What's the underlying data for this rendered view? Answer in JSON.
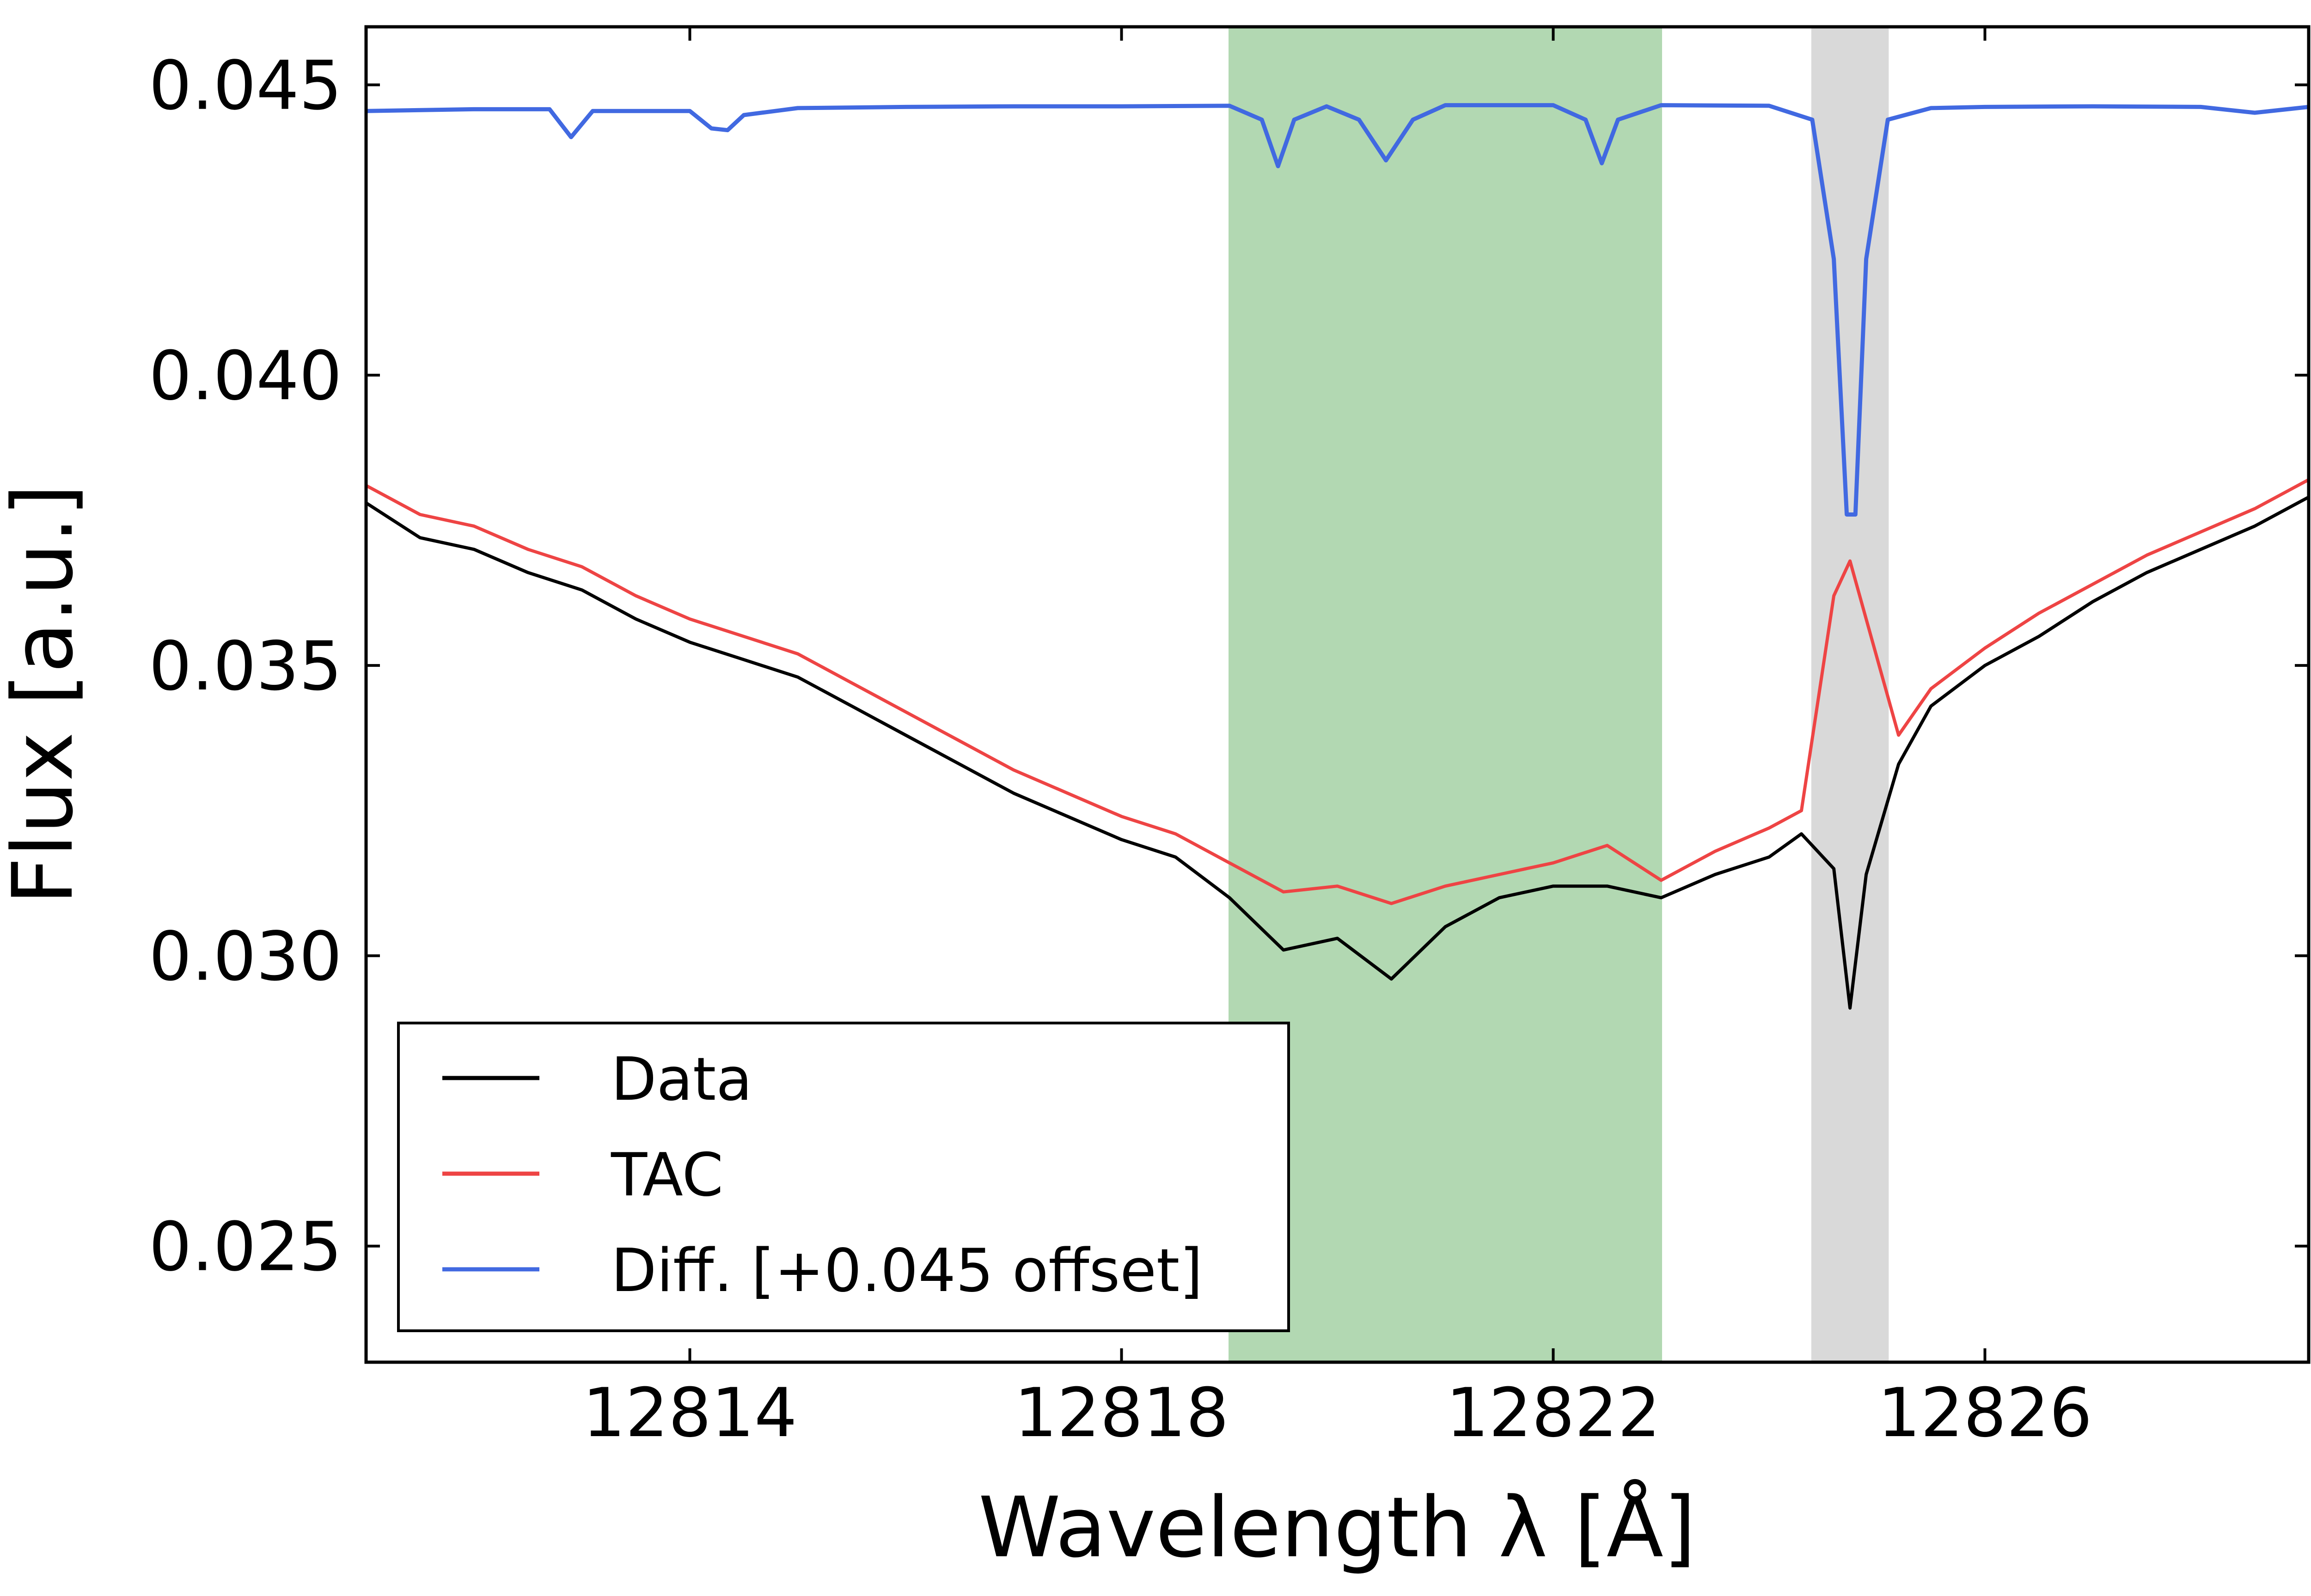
{
  "chart_data": {
    "type": "line",
    "title": "",
    "xlabel": "Wavelength λ [Å]",
    "ylabel": "Flux [a.u.]",
    "xlim": [
      12811,
      12829
    ],
    "ylim": [
      0.023,
      0.046
    ],
    "grid": false,
    "legend_position": "lower-left",
    "x_ticks": [
      12814,
      12818,
      12822,
      12826
    ],
    "x_tick_labels": [
      "12814",
      "12818",
      "12822",
      "12826"
    ],
    "y_ticks": [
      0.025,
      0.03,
      0.035,
      0.04,
      0.045
    ],
    "y_tick_labels": [
      "0.025",
      "0.030",
      "0.035",
      "0.040",
      "0.045"
    ],
    "shaded_regions": [
      {
        "name": "green-band",
        "x_start": 12819.0,
        "x_end": 12823.0,
        "color": "#b2d8b2"
      },
      {
        "name": "gray-band",
        "x_start": 12824.4,
        "x_end": 12825.1,
        "color": "#d9d9d9"
      }
    ],
    "series": [
      {
        "name": "Data",
        "color": "#000000",
        "x": [
          12811.0,
          12811.5,
          12812.0,
          12812.5,
          12813.0,
          12813.5,
          12814.0,
          12814.5,
          12815.0,
          12815.5,
          12816.0,
          12816.5,
          12817.0,
          12817.5,
          12818.0,
          12818.5,
          12819.0,
          12819.5,
          12820.0,
          12820.5,
          12821.0,
          12821.5,
          12822.0,
          12822.5,
          12823.0,
          12823.5,
          12824.0,
          12824.3,
          12824.6,
          12824.75,
          12824.9,
          12825.2,
          12825.5,
          12826.0,
          12826.5,
          12827.0,
          12827.5,
          12828.0,
          12828.5,
          12829.0
        ],
        "y": [
          0.0378,
          0.0372,
          0.037,
          0.0366,
          0.0363,
          0.0358,
          0.0354,
          0.0351,
          0.0348,
          0.0343,
          0.0338,
          0.0333,
          0.0328,
          0.0324,
          0.032,
          0.0317,
          0.031,
          0.0301,
          0.0303,
          0.0296,
          0.0305,
          0.031,
          0.0312,
          0.0312,
          0.031,
          0.0314,
          0.0317,
          0.0321,
          0.0315,
          0.0291,
          0.0314,
          0.0333,
          0.0343,
          0.035,
          0.0355,
          0.0361,
          0.0366,
          0.037,
          0.0374,
          0.0379
        ]
      },
      {
        "name": "TAC",
        "color": "#ee4444",
        "x": [
          12811.0,
          12811.5,
          12812.0,
          12812.5,
          12813.0,
          12813.5,
          12814.0,
          12814.5,
          12815.0,
          12815.5,
          12816.0,
          12816.5,
          12817.0,
          12817.5,
          12818.0,
          12818.5,
          12819.0,
          12819.5,
          12820.0,
          12820.5,
          12821.0,
          12821.5,
          12822.0,
          12822.5,
          12823.0,
          12823.5,
          12824.0,
          12824.3,
          12824.6,
          12824.75,
          12824.9,
          12825.2,
          12825.5,
          12826.0,
          12826.5,
          12827.0,
          12827.5,
          12828.0,
          12828.5,
          12829.0
        ],
        "y": [
          0.0381,
          0.0376,
          0.0374,
          0.037,
          0.0367,
          0.0362,
          0.0358,
          0.0355,
          0.0352,
          0.0347,
          0.0342,
          0.0337,
          0.0332,
          0.0328,
          0.0324,
          0.0321,
          0.0316,
          0.0311,
          0.0312,
          0.0309,
          0.0312,
          0.0314,
          0.0316,
          0.0319,
          0.0313,
          0.0318,
          0.0322,
          0.0325,
          0.0362,
          0.0368,
          0.0358,
          0.0338,
          0.0346,
          0.0353,
          0.0359,
          0.0364,
          0.0369,
          0.0373,
          0.0377,
          0.0382
        ]
      },
      {
        "name": "Diff. [+0.045 offset]",
        "color": "#4169e1",
        "x": [
          12811.0,
          12812.0,
          12812.7,
          12812.9,
          12813.1,
          12814.0,
          12814.2,
          12814.35,
          12814.5,
          12815.0,
          12816.0,
          12817.0,
          12818.0,
          12819.0,
          12819.3,
          12819.45,
          12819.6,
          12819.9,
          12820.2,
          12820.45,
          12820.7,
          12821.0,
          12822.0,
          12822.3,
          12822.45,
          12822.6,
          12823.0,
          12824.0,
          12824.4,
          12824.6,
          12824.72,
          12824.8,
          12824.9,
          12825.1,
          12825.5,
          12826.0,
          12827.0,
          12828.0,
          12828.5,
          12829.0
        ],
        "y": [
          0.04455,
          0.04458,
          0.04458,
          0.0441,
          0.04455,
          0.04455,
          0.04425,
          0.04422,
          0.04448,
          0.0446,
          0.04462,
          0.04463,
          0.04463,
          0.04464,
          0.0444,
          0.0436,
          0.0444,
          0.04463,
          0.0444,
          0.0437,
          0.0444,
          0.04465,
          0.04465,
          0.0444,
          0.04365,
          0.0444,
          0.04465,
          0.04464,
          0.0444,
          0.042,
          0.0376,
          0.0376,
          0.042,
          0.0444,
          0.0446,
          0.04462,
          0.04463,
          0.04462,
          0.04452,
          0.04462
        ]
      }
    ]
  }
}
